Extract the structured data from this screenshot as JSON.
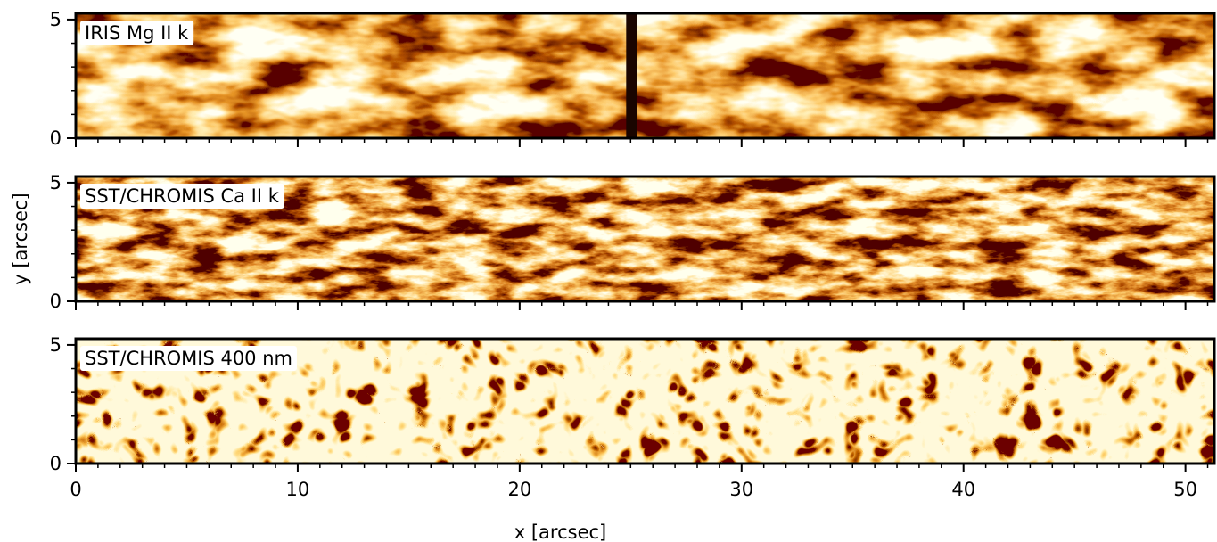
{
  "chart_data": [
    {
      "type": "image",
      "label": "IRIS Mg II k",
      "xlim": [
        0,
        51.3
      ],
      "ylim": [
        0,
        5.26
      ],
      "xticks": [
        0,
        10,
        20,
        30,
        40,
        50
      ],
      "yticks": [
        0,
        5
      ],
      "xminor": 1,
      "yminor": 1
    },
    {
      "type": "image",
      "label": "SST/CHROMIS Ca II k",
      "ylabel": "y [arcsec]",
      "xlim": [
        0,
        51.3
      ],
      "ylim": [
        0,
        5.26
      ],
      "xticks": [
        0,
        10,
        20,
        30,
        40,
        50
      ],
      "yticks": [
        0,
        5
      ],
      "xminor": 1,
      "yminor": 1
    },
    {
      "type": "image",
      "label": "SST/CHROMIS 400 nm",
      "xlabel": "x [arcsec]",
      "xlim": [
        0,
        51.3
      ],
      "ylim": [
        0,
        5.26
      ],
      "xticks": [
        0,
        10,
        20,
        30,
        40,
        50
      ],
      "yticks": [
        0,
        5
      ],
      "xminor": 1,
      "yminor": 1
    }
  ]
}
